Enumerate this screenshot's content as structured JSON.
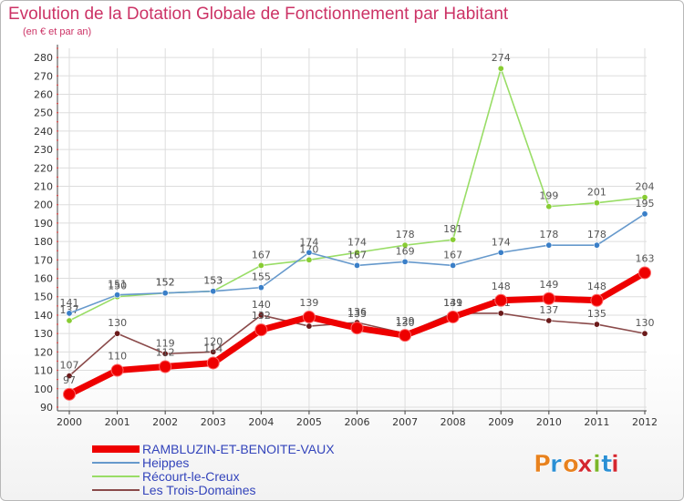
{
  "title": "Evolution de la Dotation Globale de Fonctionnement par Habitant",
  "subtitle": "(en € et par an)",
  "logo": "Proxiti",
  "logo_colors": [
    "#e8821e",
    "#2a8fd4",
    "#e8821e",
    "#d4272f",
    "#7ab629",
    "#2a8fd4",
    "#d4272f"
  ],
  "colors": {
    "title": "#cc3366",
    "grid": "#dddddd",
    "axis": "#444444",
    "legend_text": "#3344bb"
  },
  "chart_data": {
    "type": "line",
    "title": "Evolution de la Dotation Globale de Fonctionnement par Habitant",
    "subtitle": "(en € et par an)",
    "categories": [
      "2000",
      "2001",
      "2002",
      "2003",
      "2004",
      "2005",
      "2006",
      "2007",
      "2008",
      "2009",
      "2010",
      "2011",
      "2012"
    ],
    "yticks": [
      90,
      100,
      110,
      120,
      130,
      140,
      150,
      160,
      170,
      180,
      190,
      200,
      210,
      220,
      230,
      240,
      250,
      260,
      270,
      280
    ],
    "ylim": [
      88,
      285
    ],
    "grid": true,
    "legend_position": "bottom-left",
    "series": [
      {
        "name": "Les Trois-Domaines",
        "color": "#6b1a1a",
        "line_color": "#8a4a4a",
        "values": [
          107,
          130,
          119,
          120,
          140,
          134,
          136,
          130,
          141,
          141,
          137,
          135,
          130
        ],
        "labels": [
          "107",
          "130",
          "119",
          "120",
          "140",
          "",
          "136",
          "130",
          "141",
          "141",
          "137",
          "135",
          "130"
        ]
      },
      {
        "name": "Récourt-le-Creux",
        "color": "#88cc33",
        "line_color": "#99dd66",
        "values": [
          137,
          150,
          152,
          153,
          167,
          170,
          174,
          178,
          181,
          274,
          199,
          201,
          204
        ],
        "labels": [
          "137",
          "150",
          "152",
          "153",
          "167",
          "170",
          "174",
          "178",
          "181",
          "274",
          "199",
          "201",
          "204"
        ]
      },
      {
        "name": "Heippes",
        "color": "#3a7fc8",
        "line_color": "#6699cc",
        "values": [
          141,
          151,
          152,
          153,
          155,
          174,
          167,
          169,
          167,
          174,
          178,
          178,
          195
        ],
        "labels": [
          "141",
          "151",
          "152",
          "153",
          "155",
          "174",
          "167",
          "169",
          "167",
          "174",
          "178",
          "178",
          "195"
        ]
      },
      {
        "name": "RAMBLUZIN-ET-BENOITE-VAUX",
        "color": "#ee0000",
        "line_color": "#ee0000",
        "values": [
          97,
          110,
          112,
          114,
          132,
          139,
          133,
          129,
          139,
          148,
          149,
          148,
          163
        ],
        "labels": [
          "97",
          "110",
          "112",
          "114",
          "132",
          "139",
          "133",
          "129",
          "139",
          "148",
          "149",
          "148",
          "163"
        ]
      }
    ],
    "legend_order": [
      "RAMBLUZIN-ET-BENOITE-VAUX",
      "Heippes",
      "Récourt-le-Creux",
      "Les Trois-Domaines"
    ]
  }
}
